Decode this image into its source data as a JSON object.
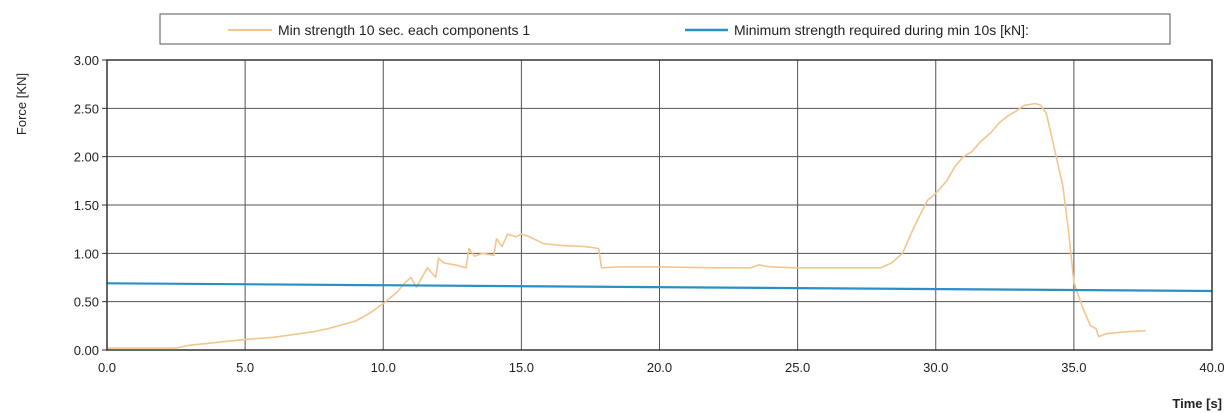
{
  "chart_data": {
    "type": "line",
    "title": "",
    "xlabel": "Time [s]",
    "ylabel": "Force [KN]",
    "xlim": [
      0,
      40
    ],
    "ylim": [
      0,
      3
    ],
    "x_ticks": [
      "0.0",
      "5.0",
      "10.0",
      "15.0",
      "20.0",
      "25.0",
      "30.0",
      "35.0",
      "40.0"
    ],
    "y_ticks": [
      "0.00",
      "0.50",
      "1.00",
      "1.50",
      "2.00",
      "2.50",
      "3.00"
    ],
    "grid": true,
    "legend_position": "top",
    "series": [
      {
        "name": "Min strength 10 sec. each components 1",
        "color": "#f2c58e",
        "points": [
          [
            0.0,
            0.02
          ],
          [
            2.5,
            0.02
          ],
          [
            3.0,
            0.05
          ],
          [
            4.0,
            0.08
          ],
          [
            5.0,
            0.11
          ],
          [
            5.5,
            0.12
          ],
          [
            6.0,
            0.13
          ],
          [
            6.5,
            0.15
          ],
          [
            7.0,
            0.17
          ],
          [
            7.5,
            0.19
          ],
          [
            8.0,
            0.22
          ],
          [
            8.5,
            0.26
          ],
          [
            9.0,
            0.3
          ],
          [
            9.5,
            0.38
          ],
          [
            10.0,
            0.48
          ],
          [
            10.5,
            0.6
          ],
          [
            10.8,
            0.7
          ],
          [
            11.0,
            0.75
          ],
          [
            11.2,
            0.65
          ],
          [
            11.6,
            0.85
          ],
          [
            11.9,
            0.75
          ],
          [
            12.0,
            0.95
          ],
          [
            12.2,
            0.9
          ],
          [
            12.6,
            0.88
          ],
          [
            13.0,
            0.85
          ],
          [
            13.1,
            1.05
          ],
          [
            13.3,
            0.97
          ],
          [
            13.6,
            1.0
          ],
          [
            14.0,
            0.98
          ],
          [
            14.1,
            1.15
          ],
          [
            14.3,
            1.07
          ],
          [
            14.5,
            1.2
          ],
          [
            14.8,
            1.17
          ],
          [
            15.0,
            1.2
          ],
          [
            15.3,
            1.17
          ],
          [
            15.8,
            1.1
          ],
          [
            16.5,
            1.08
          ],
          [
            17.3,
            1.07
          ],
          [
            17.8,
            1.05
          ],
          [
            17.9,
            0.85
          ],
          [
            18.5,
            0.86
          ],
          [
            20.0,
            0.86
          ],
          [
            22.0,
            0.85
          ],
          [
            23.3,
            0.85
          ],
          [
            23.6,
            0.88
          ],
          [
            24.0,
            0.86
          ],
          [
            25.0,
            0.85
          ],
          [
            27.0,
            0.85
          ],
          [
            28.0,
            0.85
          ],
          [
            28.4,
            0.9
          ],
          [
            28.8,
            1.0
          ],
          [
            29.1,
            1.2
          ],
          [
            29.4,
            1.38
          ],
          [
            29.7,
            1.55
          ],
          [
            30.0,
            1.62
          ],
          [
            30.4,
            1.75
          ],
          [
            30.7,
            1.9
          ],
          [
            31.0,
            2.0
          ],
          [
            31.3,
            2.05
          ],
          [
            31.6,
            2.15
          ],
          [
            32.0,
            2.25
          ],
          [
            32.3,
            2.35
          ],
          [
            32.6,
            2.42
          ],
          [
            32.9,
            2.47
          ],
          [
            33.2,
            2.53
          ],
          [
            33.6,
            2.55
          ],
          [
            33.8,
            2.53
          ],
          [
            34.0,
            2.45
          ],
          [
            34.2,
            2.2
          ],
          [
            34.4,
            1.95
          ],
          [
            34.6,
            1.7
          ],
          [
            34.8,
            1.25
          ],
          [
            35.0,
            0.7
          ],
          [
            35.3,
            0.45
          ],
          [
            35.6,
            0.25
          ],
          [
            35.8,
            0.22
          ],
          [
            35.9,
            0.14
          ],
          [
            36.2,
            0.17
          ],
          [
            37.0,
            0.19
          ],
          [
            37.6,
            0.2
          ]
        ]
      },
      {
        "name": "Minimum strength required during min 10s [kN]:",
        "color": "#2a8fc4",
        "points": [
          [
            0.0,
            0.69
          ],
          [
            40.0,
            0.61
          ]
        ]
      }
    ]
  }
}
